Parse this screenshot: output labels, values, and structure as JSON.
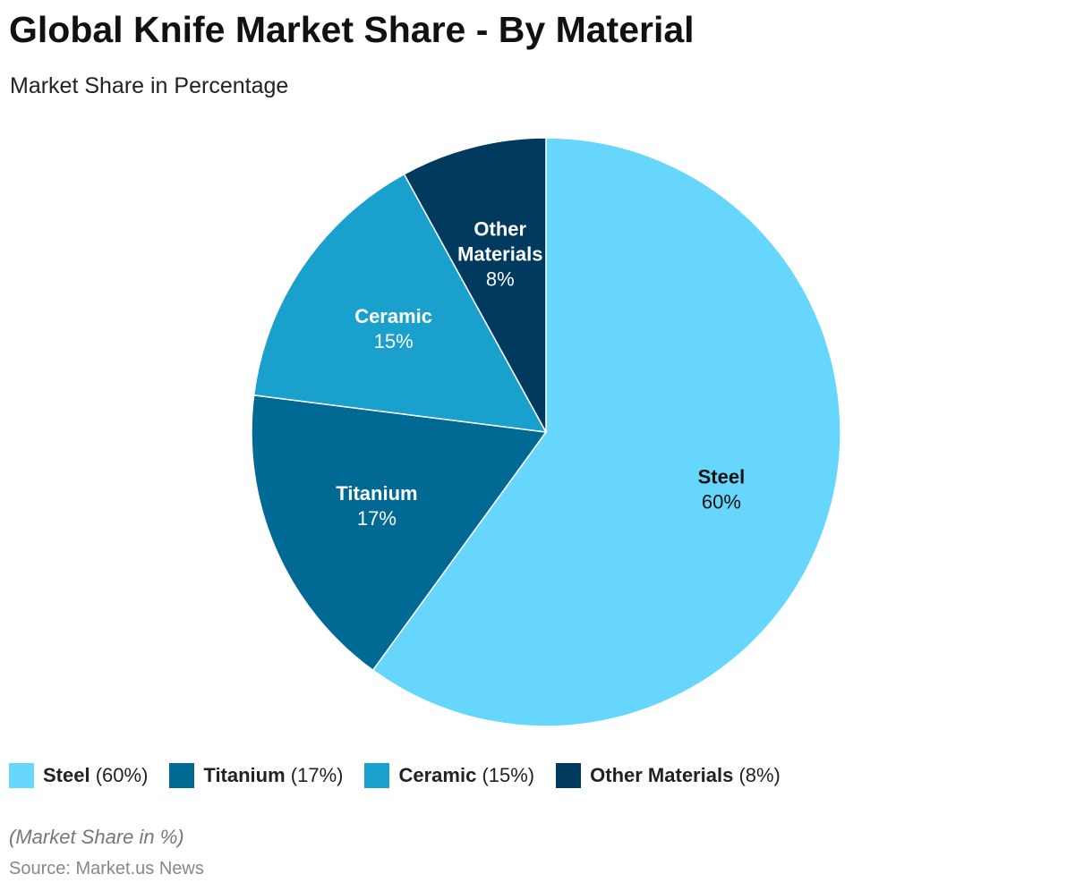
{
  "title": "Global Knife Market Share - By Material",
  "subtitle": "Market Share in Percentage",
  "note": "(Market Share in %)",
  "source": "Source: Market.us News",
  "chart_data": {
    "type": "pie",
    "title": "Global Knife Market Share - By Material",
    "subtitle": "Market Share in Percentage",
    "categories": [
      "Steel",
      "Titanium",
      "Ceramic",
      "Other Materials"
    ],
    "values": [
      60,
      17,
      15,
      8
    ],
    "value_labels": [
      "60%",
      "17%",
      "15%",
      "8%"
    ],
    "legend_labels": [
      "(60%)",
      "(17%)",
      "(15%)",
      "(8%)"
    ],
    "colors": [
      "#66d6fc",
      "#006994",
      "#1aa0cc",
      "#003a5f"
    ],
    "label_colors": [
      "#111111",
      "#ffffff",
      "#ffffff",
      "#ffffff"
    ],
    "legend_position": "bottom-left"
  }
}
